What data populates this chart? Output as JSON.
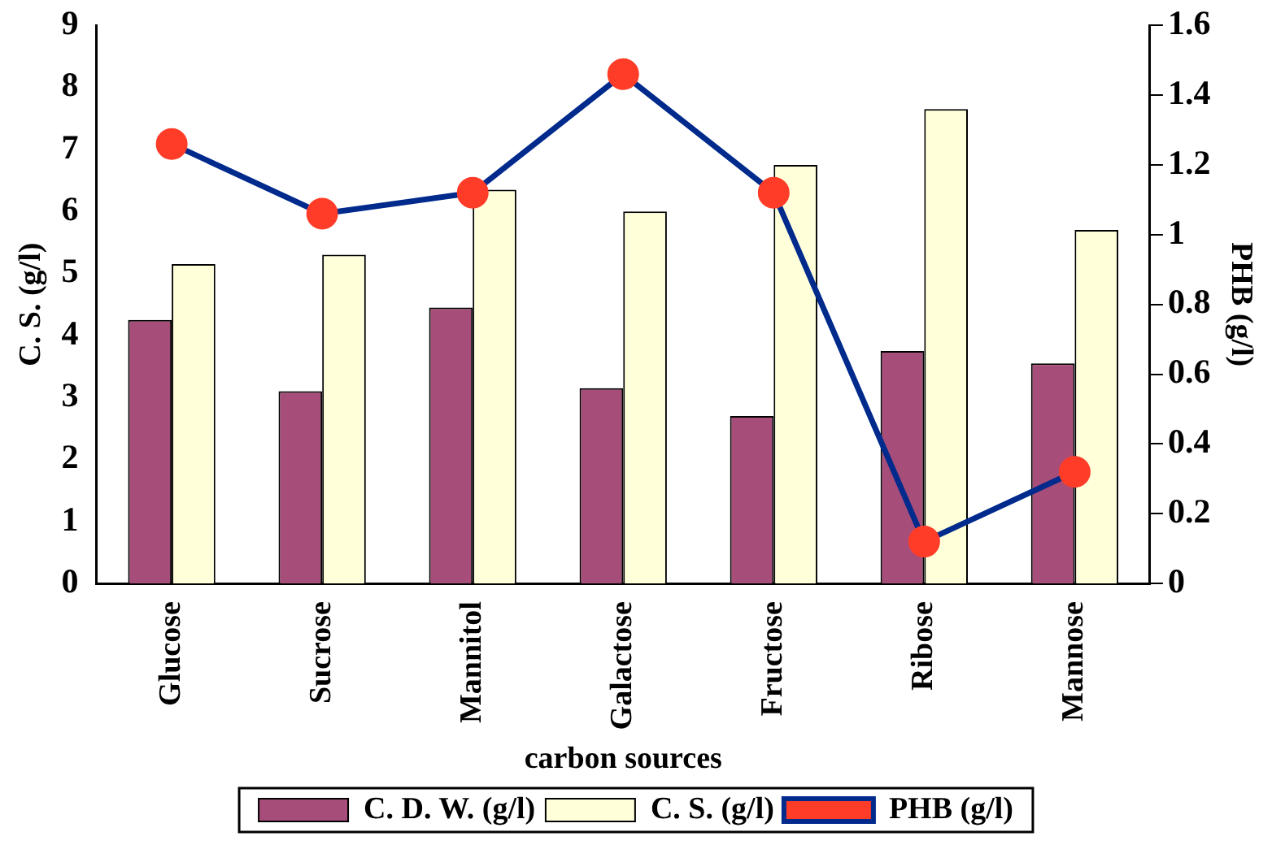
{
  "chart_data": {
    "type": "bar",
    "xlabel": "carbon sources",
    "ylabel": "C. S. (g/l)",
    "y2label": "PHB (g/l)",
    "categories": [
      "Glucose",
      "Sucrose",
      "Mannitol",
      "Galactose",
      "Fructose",
      "Ribose",
      "Mannose"
    ],
    "series": [
      {
        "name": "C. D. W. (g/l)",
        "color": "#a64d79",
        "values": [
          4.25,
          3.1,
          4.45,
          3.15,
          2.7,
          3.75,
          3.55
        ]
      },
      {
        "name": "C. S. (g/l)",
        "color": "#ffffd9",
        "values": [
          5.15,
          5.3,
          6.35,
          6.0,
          6.75,
          7.65,
          5.7
        ]
      },
      {
        "name": "PHB (g/l)",
        "type": "line",
        "axis": "y2",
        "color": "#002a8c",
        "colors": [
          "#ff3c28",
          "#ff3c28",
          "#ff3c28",
          "#ff3c28",
          "#ff3c28",
          "#ff3c28",
          "#ff3c28"
        ],
        "values": [
          1.26,
          1.06,
          1.12,
          1.46,
          1.12,
          0.12,
          0.32
        ]
      }
    ],
    "ylim": [
      0,
      9
    ],
    "yticks": [
      0,
      1,
      2,
      3,
      4,
      5,
      6,
      7,
      8,
      9
    ],
    "y2lim": [
      0,
      1.6
    ],
    "y2ticks": [
      0,
      0.2,
      0.4,
      0.6,
      0.8,
      1,
      1.2,
      1.4,
      1.6
    ],
    "grid": false,
    "legend": "bottom",
    "marker": "circle",
    "line_style": "solid"
  }
}
